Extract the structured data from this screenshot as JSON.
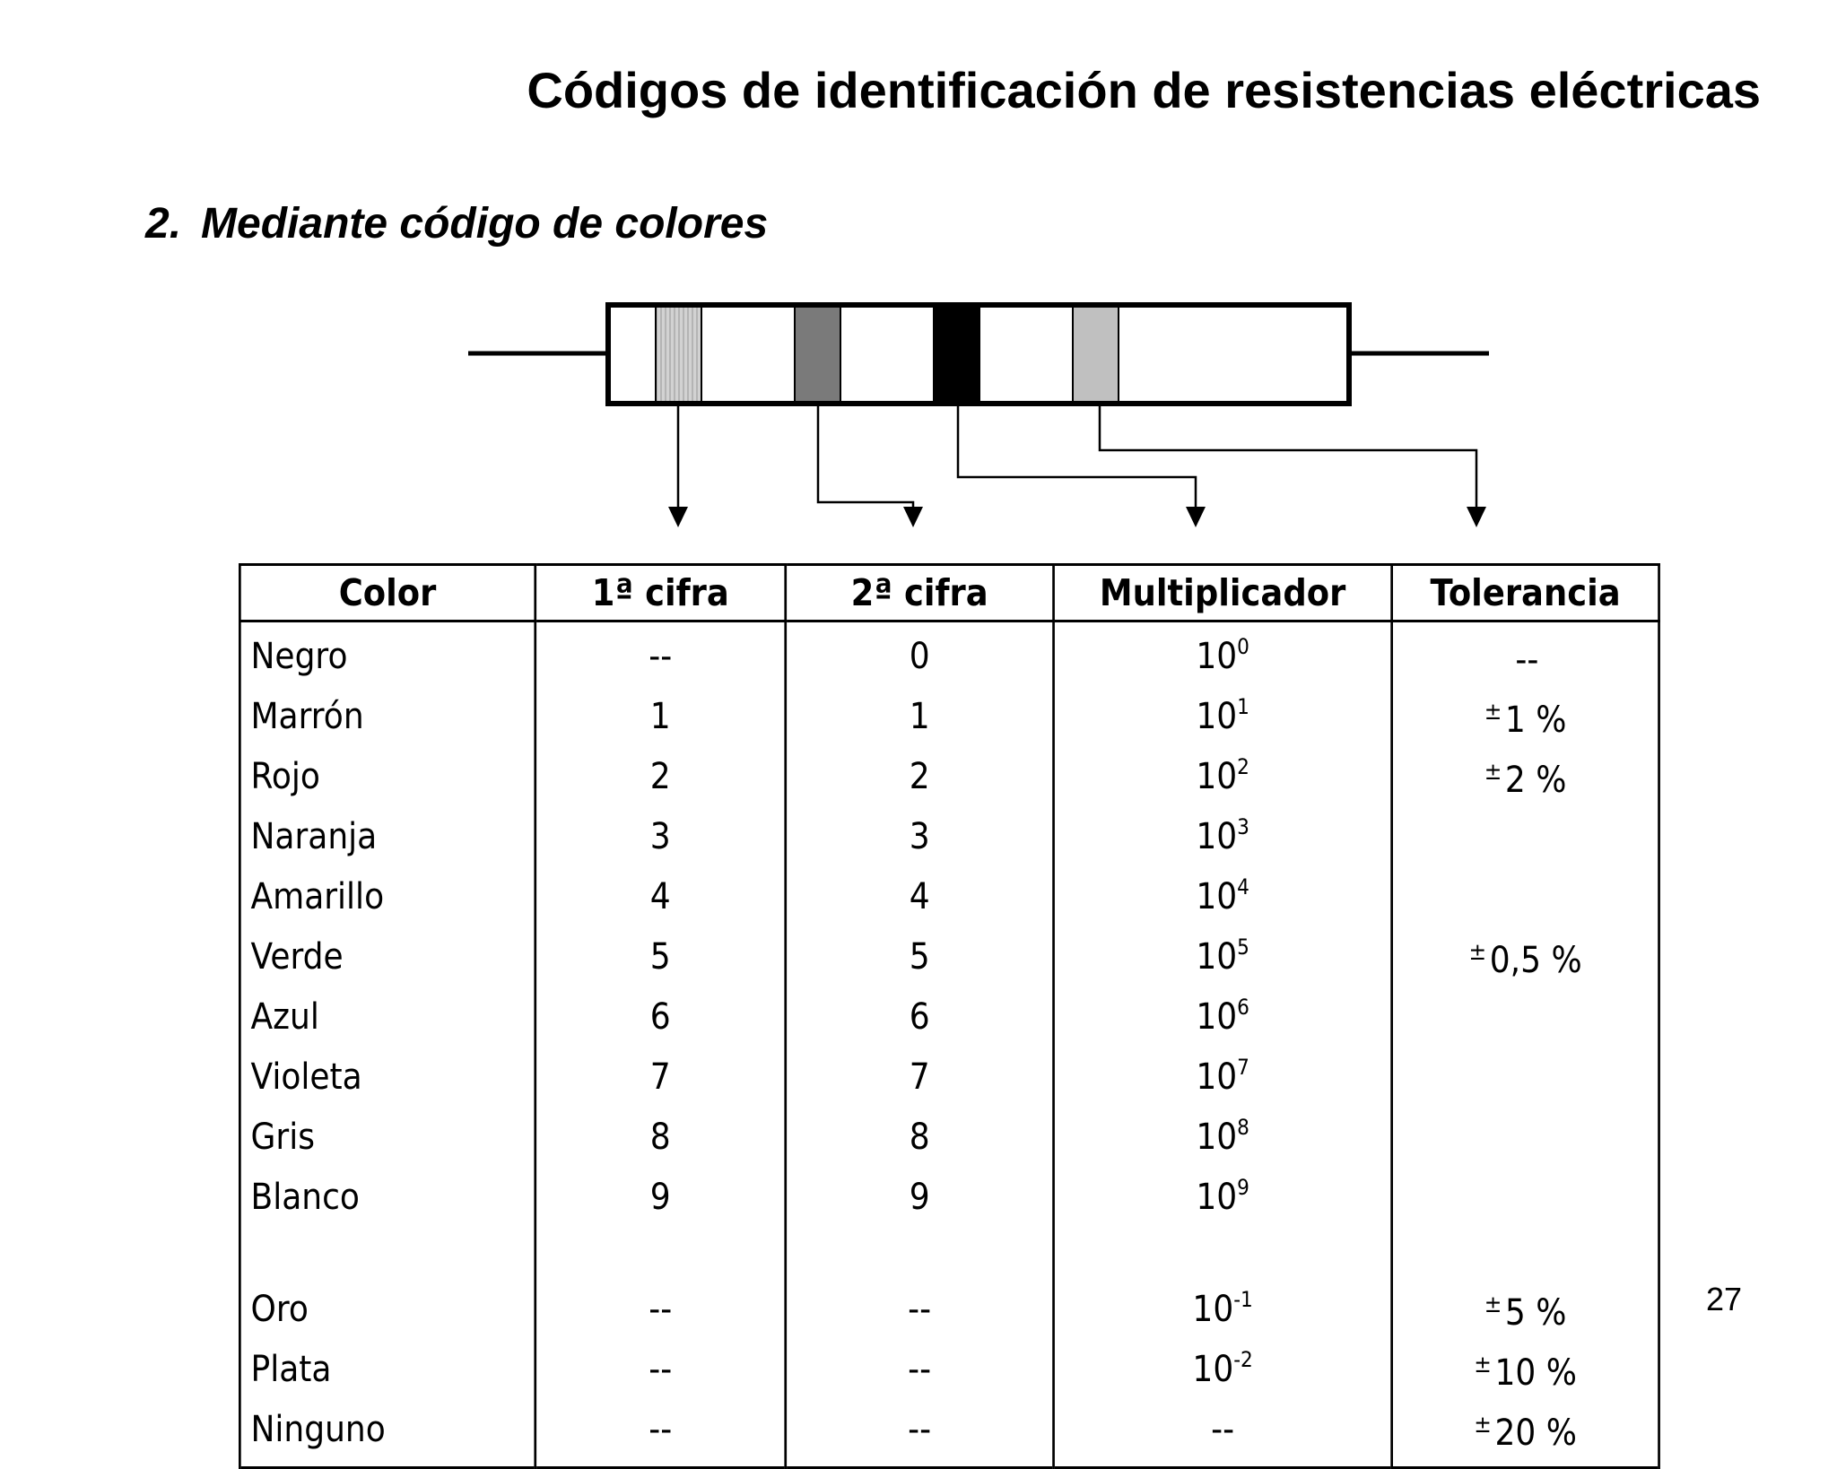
{
  "title": "Códigos de identificación de resistencias eléctricas",
  "subtitle": {
    "number": "2.",
    "text": "Mediante código de colores"
  },
  "diagram": {
    "bands": [
      {
        "name": "first-digit-band",
        "fill": "#c8c8c8"
      },
      {
        "name": "second-digit-band",
        "fill": "#7a7a7a"
      },
      {
        "name": "multiplier-band",
        "fill": "#000000"
      },
      {
        "name": "tolerance-band",
        "fill": "#c0c0c0"
      }
    ]
  },
  "table": {
    "headers": [
      "Color",
      "1ª cifra",
      "2ª cifra",
      "Multiplicador",
      "Tolerancia"
    ],
    "rows": [
      {
        "color": "Negro",
        "d1": "--",
        "d2": "0",
        "mult_base": "10",
        "mult_exp": "0",
        "tol_pm": "",
        "tol": "--"
      },
      {
        "color": "Marrón",
        "d1": "1",
        "d2": "1",
        "mult_base": "10",
        "mult_exp": "1",
        "tol_pm": "±",
        "tol": "1 %"
      },
      {
        "color": "Rojo",
        "d1": "2",
        "d2": "2",
        "mult_base": "10",
        "mult_exp": "2",
        "tol_pm": "±",
        "tol": "2 %"
      },
      {
        "color": "Naranja",
        "d1": "3",
        "d2": "3",
        "mult_base": "10",
        "mult_exp": "3",
        "tol_pm": "",
        "tol": ""
      },
      {
        "color": "Amarillo",
        "d1": "4",
        "d2": "4",
        "mult_base": "10",
        "mult_exp": "4",
        "tol_pm": "",
        "tol": ""
      },
      {
        "color": "Verde",
        "d1": "5",
        "d2": "5",
        "mult_base": "10",
        "mult_exp": "5",
        "tol_pm": "±",
        "tol": "0,5 %"
      },
      {
        "color": "Azul",
        "d1": "6",
        "d2": "6",
        "mult_base": "10",
        "mult_exp": "6",
        "tol_pm": "",
        "tol": ""
      },
      {
        "color": "Violeta",
        "d1": "7",
        "d2": "7",
        "mult_base": "10",
        "mult_exp": "7",
        "tol_pm": "",
        "tol": ""
      },
      {
        "color": "Gris",
        "d1": "8",
        "d2": "8",
        "mult_base": "10",
        "mult_exp": "8",
        "tol_pm": "",
        "tol": ""
      },
      {
        "color": "Blanco",
        "d1": "9",
        "d2": "9",
        "mult_base": "10",
        "mult_exp": "9",
        "tol_pm": "",
        "tol": ""
      },
      {
        "color": "Oro",
        "d1": "--",
        "d2": "--",
        "mult_base": "10",
        "mult_exp": "-1",
        "tol_pm": "±",
        "tol": "5 %"
      },
      {
        "color": "Plata",
        "d1": "--",
        "d2": "--",
        "mult_base": "10",
        "mult_exp": "-2",
        "tol_pm": "±",
        "tol": "10 %"
      },
      {
        "color": "Ninguno",
        "d1": "--",
        "d2": "--",
        "mult_base": "--",
        "mult_exp": "",
        "tol_pm": "±",
        "tol": "20 %"
      }
    ]
  },
  "page_number": "27"
}
